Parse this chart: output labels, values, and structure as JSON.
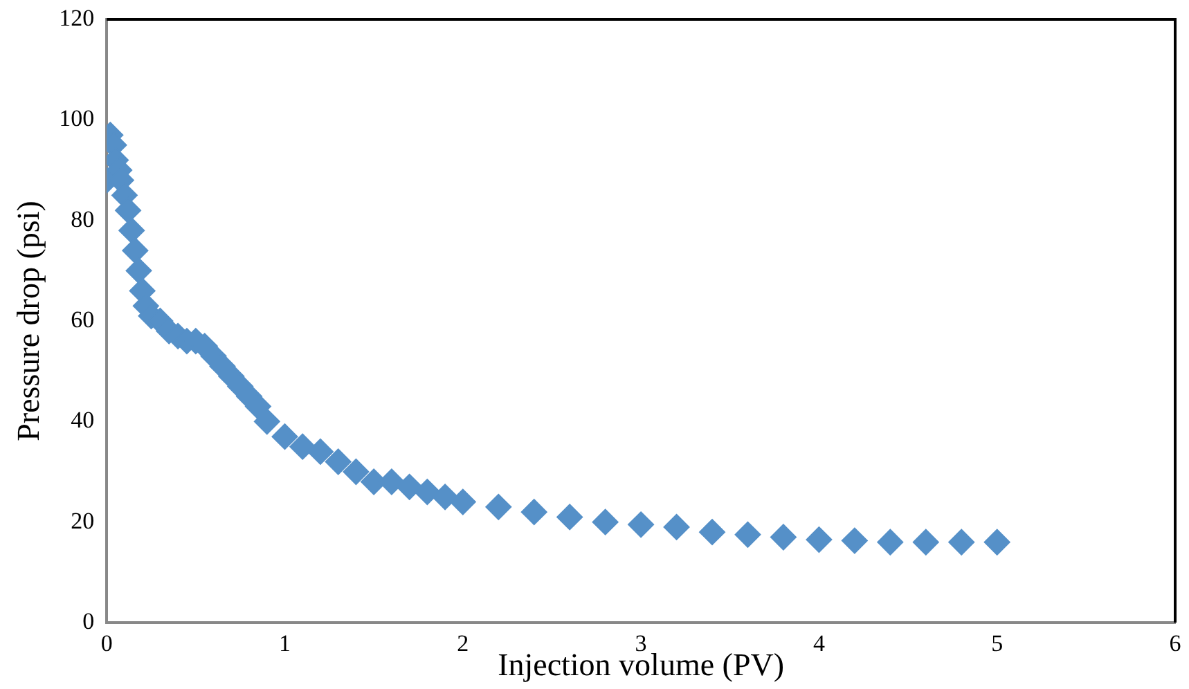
{
  "chart_data": {
    "type": "scatter",
    "xlabel": "Injection volume (PV)",
    "ylabel": "Pressure drop (psi)",
    "x": [
      0,
      0.02,
      0.04,
      0.05,
      0.07,
      0.08,
      0.1,
      0.12,
      0.14,
      0.16,
      0.18,
      0.2,
      0.22,
      0.25,
      0.3,
      0.35,
      0.4,
      0.45,
      0.5,
      0.55,
      0.6,
      0.65,
      0.7,
      0.75,
      0.8,
      0.85,
      0.9,
      1.0,
      1.1,
      1.2,
      1.3,
      1.4,
      1.5,
      1.6,
      1.7,
      1.8,
      1.9,
      2.0,
      2.2,
      2.4,
      2.6,
      2.8,
      3.0,
      3.2,
      3.4,
      3.6,
      3.8,
      4.0,
      4.2,
      4.4,
      4.6,
      4.8,
      5.0
    ],
    "values": [
      88,
      97,
      95,
      92,
      90,
      88,
      85,
      82,
      78,
      74,
      70,
      66,
      63,
      61,
      60,
      58,
      57,
      56,
      56,
      55,
      53,
      51,
      49,
      47,
      45,
      43,
      40,
      37,
      35,
      34,
      32,
      30,
      28,
      28,
      27,
      26,
      25,
      24,
      23,
      22,
      21,
      20,
      19.5,
      19,
      18,
      17.5,
      17,
      16.5,
      16.3,
      16,
      16,
      16,
      16
    ],
    "color": "#5590c8",
    "marker": "diamond",
    "grid": false,
    "xlim": [
      0,
      6
    ],
    "xticks": [
      0,
      1,
      2,
      3,
      4,
      5,
      6
    ],
    "ylim": [
      0,
      120
    ],
    "yticks": [
      0,
      20,
      40,
      60,
      80,
      100,
      120
    ]
  }
}
